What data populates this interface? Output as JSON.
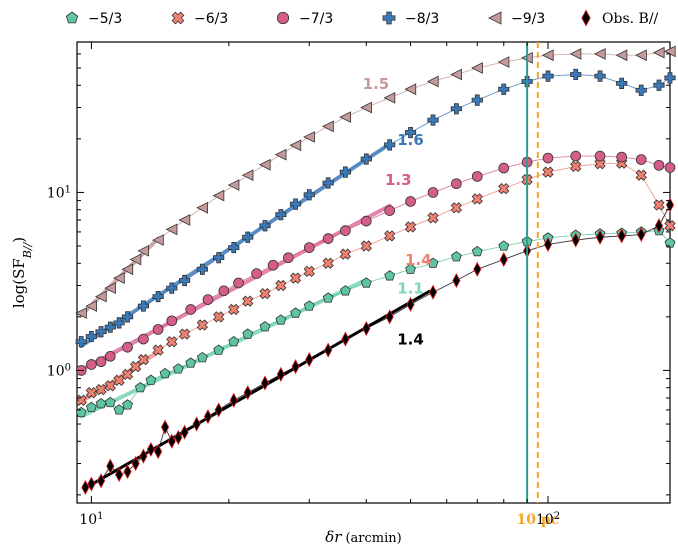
{
  "chart_data": {
    "type": "scatter",
    "xlabel_var": "δr",
    "xlabel_unit": "(arcmin)",
    "ylabel_main": "log(SF",
    "ylabel_sub": "B//",
    "ylabel_close": ")",
    "xscale": "log",
    "yscale": "log",
    "xlim": [
      9.3,
      185
    ],
    "ylim": [
      0.18,
      70
    ],
    "x_ticks": [
      {
        "value": 10,
        "base": "10",
        "exp": "1"
      },
      {
        "value": 100,
        "base": "10",
        "exp": "2"
      }
    ],
    "y_ticks": [
      {
        "value": 1,
        "base": "10",
        "exp": "0"
      },
      {
        "value": 10,
        "base": "10",
        "exp": "1"
      }
    ],
    "legend_position": "top",
    "series": [
      {
        "name": "−5/3",
        "color": "#5ec4a1",
        "marker": "pentagon",
        "values": [
          [
            9.5,
            0.58
          ],
          [
            10,
            0.62
          ],
          [
            10.5,
            0.65
          ],
          [
            11,
            0.66
          ],
          [
            11.5,
            0.6
          ],
          [
            12,
            0.64
          ],
          [
            12.8,
            0.8
          ],
          [
            13.5,
            0.88
          ],
          [
            14.5,
            0.96
          ],
          [
            15.5,
            1.02
          ],
          [
            16.5,
            1.1
          ],
          [
            17.5,
            1.18
          ],
          [
            19,
            1.3
          ],
          [
            20.5,
            1.45
          ],
          [
            22,
            1.6
          ],
          [
            24,
            1.76
          ],
          [
            26,
            1.92
          ],
          [
            28,
            2.1
          ],
          [
            30,
            2.3
          ],
          [
            33,
            2.55
          ],
          [
            36,
            2.8
          ],
          [
            40,
            3.1
          ],
          [
            45,
            3.4
          ],
          [
            50,
            3.7
          ],
          [
            56,
            4.0
          ],
          [
            63,
            4.35
          ],
          [
            70,
            4.65
          ],
          [
            80,
            5.0
          ],
          [
            90,
            5.3
          ],
          [
            100,
            5.55
          ],
          [
            115,
            5.75
          ],
          [
            130,
            5.85
          ],
          [
            145,
            5.9
          ],
          [
            160,
            6.0
          ],
          [
            175,
            6.1
          ],
          [
            185,
            5.2
          ]
        ],
        "fit_slope": "1.1"
      },
      {
        "name": "−6/3",
        "color": "#f08070",
        "marker": "x-cross",
        "values": [
          [
            9.5,
            0.68
          ],
          [
            10,
            0.75
          ],
          [
            10.5,
            0.78
          ],
          [
            11,
            0.82
          ],
          [
            11.5,
            0.88
          ],
          [
            12,
            0.95
          ],
          [
            12.5,
            1.05
          ],
          [
            13,
            1.15
          ],
          [
            14,
            1.3
          ],
          [
            15,
            1.45
          ],
          [
            16,
            1.6
          ],
          [
            17.5,
            1.8
          ],
          [
            19,
            2.0
          ],
          [
            20.5,
            2.2
          ],
          [
            22,
            2.45
          ],
          [
            24,
            2.7
          ],
          [
            26,
            3.0
          ],
          [
            28,
            3.3
          ],
          [
            30,
            3.6
          ],
          [
            33,
            4.0
          ],
          [
            36,
            4.5
          ],
          [
            40,
            5.0
          ],
          [
            45,
            5.7
          ],
          [
            50,
            6.4
          ],
          [
            56,
            7.2
          ],
          [
            63,
            8.2
          ],
          [
            70,
            9.2
          ],
          [
            80,
            10.5
          ],
          [
            90,
            11.8
          ],
          [
            100,
            13.0
          ],
          [
            115,
            14.0
          ],
          [
            130,
            14.5
          ],
          [
            145,
            14.6
          ],
          [
            160,
            12.5
          ],
          [
            175,
            8.5
          ],
          [
            185,
            6.5
          ]
        ],
        "fit_slope": "1.4"
      },
      {
        "name": "−7/3",
        "color": "#d45d8a",
        "marker": "circle",
        "values": [
          [
            9.5,
            1.0
          ],
          [
            10,
            1.08
          ],
          [
            10.5,
            1.12
          ],
          [
            11,
            1.2
          ],
          [
            12,
            1.35
          ],
          [
            13,
            1.5
          ],
          [
            14,
            1.7
          ],
          [
            15,
            1.9
          ],
          [
            16.5,
            2.2
          ],
          [
            18,
            2.5
          ],
          [
            19.5,
            2.8
          ],
          [
            21,
            3.1
          ],
          [
            23,
            3.5
          ],
          [
            25,
            3.9
          ],
          [
            27,
            4.3
          ],
          [
            30,
            4.9
          ],
          [
            33,
            5.5
          ],
          [
            36,
            6.1
          ],
          [
            40,
            6.9
          ],
          [
            45,
            7.9
          ],
          [
            50,
            8.9
          ],
          [
            56,
            10.0
          ],
          [
            63,
            11.2
          ],
          [
            70,
            12.3
          ],
          [
            80,
            13.7
          ],
          [
            90,
            14.8
          ],
          [
            100,
            15.6
          ],
          [
            115,
            16.0
          ],
          [
            130,
            16.0
          ],
          [
            145,
            15.8
          ],
          [
            160,
            15.3
          ],
          [
            175,
            14.2
          ],
          [
            185,
            13.8
          ]
        ],
        "fit_slope": "1.3"
      },
      {
        "name": "−8/3",
        "color": "#3b78b8",
        "marker": "plus",
        "values": [
          [
            9.5,
            1.45
          ],
          [
            10,
            1.55
          ],
          [
            10.5,
            1.65
          ],
          [
            11,
            1.75
          ],
          [
            11.5,
            1.85
          ],
          [
            12,
            2.0
          ],
          [
            13,
            2.3
          ],
          [
            14,
            2.6
          ],
          [
            15,
            2.9
          ],
          [
            16,
            3.2
          ],
          [
            17.5,
            3.7
          ],
          [
            19,
            4.3
          ],
          [
            20.5,
            4.9
          ],
          [
            22,
            5.6
          ],
          [
            24,
            6.5
          ],
          [
            26,
            7.5
          ],
          [
            28,
            8.6
          ],
          [
            30,
            9.7
          ],
          [
            33,
            11.3
          ],
          [
            36,
            13.0
          ],
          [
            40,
            15.4
          ],
          [
            45,
            18.5
          ],
          [
            50,
            21.7
          ],
          [
            56,
            25.5
          ],
          [
            63,
            29.5
          ],
          [
            70,
            33.0
          ],
          [
            80,
            38.0
          ],
          [
            90,
            42.0
          ],
          [
            100,
            45.0
          ],
          [
            115,
            46.0
          ],
          [
            130,
            45.0
          ],
          [
            145,
            41.0
          ],
          [
            160,
            37.5
          ],
          [
            175,
            40.0
          ],
          [
            185,
            44.0
          ]
        ],
        "fit_slope": "1.6"
      },
      {
        "name": "−9/3",
        "color": "#c49a9a",
        "marker": "triangle-left",
        "values": [
          [
            9.5,
            2.1
          ],
          [
            10,
            2.3
          ],
          [
            10.5,
            2.6
          ],
          [
            11,
            2.9
          ],
          [
            11.5,
            3.3
          ],
          [
            12,
            3.7
          ],
          [
            12.5,
            4.2
          ],
          [
            13,
            4.7
          ],
          [
            14,
            5.4
          ],
          [
            15,
            6.2
          ],
          [
            16,
            7.0
          ],
          [
            17.5,
            8.2
          ],
          [
            19,
            9.6
          ],
          [
            20.5,
            11.0
          ],
          [
            22,
            12.5
          ],
          [
            24,
            14.3
          ],
          [
            26,
            16.3
          ],
          [
            28,
            18.4
          ],
          [
            30,
            20.5
          ],
          [
            33,
            23.5
          ],
          [
            36,
            26.5
          ],
          [
            40,
            30.0
          ],
          [
            45,
            34.0
          ],
          [
            50,
            38.0
          ],
          [
            56,
            42.0
          ],
          [
            63,
            46.0
          ],
          [
            70,
            50.0
          ],
          [
            80,
            54.0
          ],
          [
            90,
            57.0
          ],
          [
            100,
            59.0
          ],
          [
            115,
            60.0
          ],
          [
            130,
            60.0
          ],
          [
            145,
            59.0
          ],
          [
            160,
            59.0
          ],
          [
            175,
            61.0
          ],
          [
            185,
            62.0
          ]
        ],
        "fit_slope": "1.5"
      },
      {
        "name": "Obs. B//",
        "color": "#000000",
        "edge_color": "#e0202a",
        "marker": "diamond",
        "values": [
          [
            9.7,
            0.22
          ],
          [
            10,
            0.23
          ],
          [
            10.5,
            0.24
          ],
          [
            11,
            0.29
          ],
          [
            11.5,
            0.26
          ],
          [
            12,
            0.27
          ],
          [
            12.5,
            0.3
          ],
          [
            13,
            0.33
          ],
          [
            13.5,
            0.36
          ],
          [
            14,
            0.35
          ],
          [
            14.5,
            0.48
          ],
          [
            15,
            0.4
          ],
          [
            15.5,
            0.42
          ],
          [
            16,
            0.45
          ],
          [
            17,
            0.5
          ],
          [
            18,
            0.55
          ],
          [
            19,
            0.6
          ],
          [
            20.5,
            0.68
          ],
          [
            22,
            0.75
          ],
          [
            24,
            0.85
          ],
          [
            26,
            0.95
          ],
          [
            28,
            1.05
          ],
          [
            30,
            1.15
          ],
          [
            33,
            1.3
          ],
          [
            36,
            1.5
          ],
          [
            40,
            1.72
          ],
          [
            45,
            2.0
          ],
          [
            50,
            2.35
          ],
          [
            56,
            2.75
          ],
          [
            63,
            3.2
          ],
          [
            70,
            3.7
          ],
          [
            80,
            4.2
          ],
          [
            90,
            4.7
          ],
          [
            100,
            5.1
          ],
          [
            115,
            5.4
          ],
          [
            130,
            5.6
          ],
          [
            145,
            5.7
          ],
          [
            160,
            5.8
          ],
          [
            175,
            6.5
          ],
          [
            185,
            8.5
          ]
        ],
        "fit_slope": "1.4"
      }
    ],
    "vlines": [
      {
        "x": 90,
        "color": "#2a9d8f",
        "style": "solid",
        "label": ""
      },
      {
        "x": 95,
        "color": "#f5a623",
        "style": "dashed",
        "label": "10 pc"
      }
    ]
  }
}
